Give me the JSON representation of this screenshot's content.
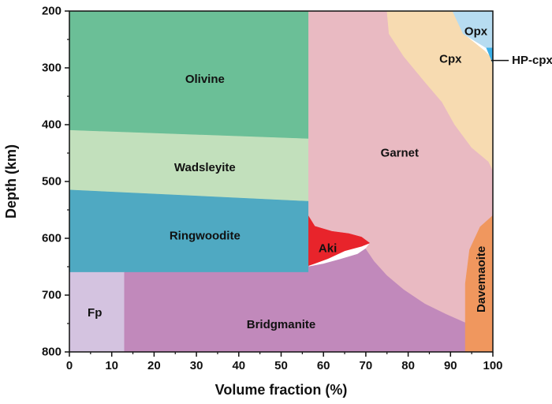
{
  "chart_data": {
    "type": "area",
    "xlabel": "Volume fraction (%)",
    "ylabel": "Depth (km)",
    "xlim": [
      0,
      100
    ],
    "ylim": [
      200,
      800
    ],
    "y_inverted": true,
    "x_ticks": [
      "0",
      "10",
      "20",
      "30",
      "40",
      "50",
      "60",
      "70",
      "80",
      "90",
      "100"
    ],
    "y_ticks": [
      "200",
      "300",
      "400",
      "500",
      "600",
      "700",
      "800"
    ],
    "regions": [
      {
        "name": "Olivine",
        "color": "#6bbf97",
        "label_at": [
          32,
          320
        ],
        "polygon": [
          [
            0,
            200
          ],
          [
            56.5,
            200
          ],
          [
            56.5,
            425
          ],
          [
            0,
            410
          ]
        ]
      },
      {
        "name": "Wadsleyite",
        "color": "#c2e0bc",
        "label_at": [
          32,
          476
        ],
        "polygon": [
          [
            0,
            410
          ],
          [
            56.5,
            425
          ],
          [
            56.5,
            535
          ],
          [
            0,
            515
          ]
        ]
      },
      {
        "name": "Ringwoodite",
        "color": "#4fa9c2",
        "label_at": [
          32,
          596
        ],
        "polygon": [
          [
            0,
            515
          ],
          [
            56.5,
            535
          ],
          [
            56.5,
            660
          ],
          [
            0,
            660
          ]
        ]
      },
      {
        "name": "Fp",
        "color": "#d4c3e0",
        "label_at": [
          6,
          731
        ],
        "polygon": [
          [
            0,
            660
          ],
          [
            13,
            660
          ],
          [
            13,
            800
          ],
          [
            0,
            800
          ]
        ]
      },
      {
        "name": "Bridgmanite",
        "color": "#c189bb",
        "label_at": [
          50,
          752
        ],
        "polygon": [
          [
            13,
            660
          ],
          [
            56.5,
            660
          ],
          [
            56.5,
            650
          ],
          [
            60,
            645
          ],
          [
            64,
            637
          ],
          [
            68,
            628
          ],
          [
            70,
            618
          ],
          [
            72,
            640
          ],
          [
            75,
            665
          ],
          [
            79,
            690
          ],
          [
            84,
            715
          ],
          [
            89,
            733
          ],
          [
            93.5,
            748
          ],
          [
            93.5,
            800
          ],
          [
            13,
            800
          ]
        ]
      },
      {
        "name": "Aki",
        "color": "#e8242b",
        "label_at": [
          61,
          618
        ],
        "polygon": [
          [
            56.5,
            560
          ],
          [
            58,
            578
          ],
          [
            62,
            587
          ],
          [
            66,
            591
          ],
          [
            69,
            597
          ],
          [
            71,
            608
          ],
          [
            69,
            614
          ],
          [
            65,
            622
          ],
          [
            61,
            636
          ],
          [
            58,
            644
          ],
          [
            56.5,
            648
          ]
        ]
      },
      {
        "name": "Garnet",
        "color": "#e9bac2",
        "label_at": [
          78,
          450
        ],
        "polygon": [
          [
            56.5,
            200
          ],
          [
            75,
            200
          ],
          [
            75.5,
            240
          ],
          [
            79,
            280
          ],
          [
            84,
            325
          ],
          [
            88,
            360
          ],
          [
            91,
            400
          ],
          [
            95,
            440
          ],
          [
            99,
            465
          ],
          [
            100,
            480
          ],
          [
            100,
            560
          ],
          [
            97,
            580
          ],
          [
            94.5,
            620
          ],
          [
            93.5,
            680
          ],
          [
            93.5,
            748
          ],
          [
            89,
            733
          ],
          [
            84,
            715
          ],
          [
            79,
            690
          ],
          [
            75,
            665
          ],
          [
            72,
            640
          ],
          [
            70,
            618
          ],
          [
            71,
            608
          ],
          [
            69,
            597
          ],
          [
            66,
            591
          ],
          [
            62,
            587
          ],
          [
            58,
            578
          ],
          [
            56.5,
            560
          ]
        ]
      },
      {
        "name": "Cpx",
        "color": "#f7dbb1",
        "label_at": [
          90,
          285
        ],
        "polygon": [
          [
            75,
            200
          ],
          [
            90.5,
            200
          ],
          [
            93,
            240
          ],
          [
            98,
            270
          ],
          [
            100,
            285
          ],
          [
            100,
            480
          ],
          [
            99,
            465
          ],
          [
            95,
            440
          ],
          [
            91,
            400
          ],
          [
            88,
            360
          ],
          [
            84,
            325
          ],
          [
            79,
            280
          ],
          [
            75.5,
            240
          ]
        ]
      },
      {
        "name": "Opx",
        "color": "#b7dcf1",
        "label_at": [
          96,
          236
        ],
        "polygon": [
          [
            90.5,
            200
          ],
          [
            100,
            200
          ],
          [
            100,
            265
          ],
          [
            98.5,
            265
          ],
          [
            93,
            240
          ]
        ]
      },
      {
        "name": "HP-cpx",
        "color": "#3aaee6",
        "label_at": [
          104.5,
          287
        ],
        "callout": true,
        "polygon": [
          [
            98.5,
            265
          ],
          [
            100,
            265
          ],
          [
            100,
            292
          ]
        ]
      },
      {
        "name": "Davemaoite",
        "color": "#f0975e",
        "label_at": [
          97.3,
          672
        ],
        "vertical": true,
        "polygon": [
          [
            93.5,
            800
          ],
          [
            100,
            800
          ],
          [
            100,
            560
          ],
          [
            97,
            580
          ],
          [
            94.5,
            620
          ],
          [
            93.5,
            680
          ]
        ]
      }
    ],
    "grid": false,
    "legend": "none"
  }
}
